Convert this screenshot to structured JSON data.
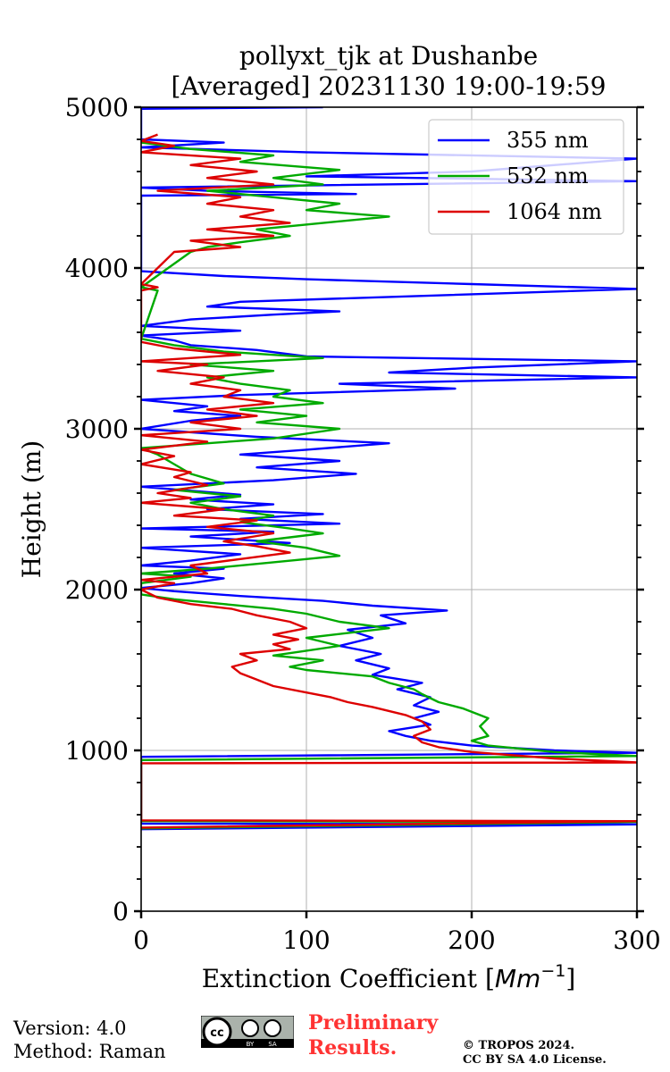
{
  "chart_data": {
    "type": "line",
    "title": "pollyxt_tjk at Dushanbe",
    "subtitle": "[Averaged] 20231130 19:00-19:59",
    "xlabel": "Extinction Coefficient [$Mm^{-1}$]",
    "xlabel_main": "Extinction Coefficient [",
    "xlabel_unit": "Mm",
    "xlabel_exp": "−1",
    "xlabel_close": "]",
    "ylabel": "Height (m)",
    "xlim": [
      0,
      300
    ],
    "ylim": [
      0,
      5000
    ],
    "x_ticks": [
      0,
      100,
      200,
      300
    ],
    "x_tick_labels": [
      "0",
      "100",
      "200",
      "300"
    ],
    "y_ticks": [
      0,
      1000,
      2000,
      3000,
      4000,
      5000
    ],
    "y_tick_labels": [
      "0",
      "1000",
      "2000",
      "3000",
      "4000",
      "5000"
    ],
    "grid": true,
    "legend_position": "top-right",
    "series": [
      {
        "name": "355 nm",
        "color": "#0000ff",
        "points": [
          [
            0,
            510
          ],
          [
            300,
            540
          ],
          [
            0,
            545
          ],
          [
            0,
            960
          ],
          [
            300,
            985
          ],
          [
            250,
            1000
          ],
          [
            200,
            1030
          ],
          [
            175,
            1060
          ],
          [
            160,
            1090
          ],
          [
            150,
            1120
          ],
          [
            175,
            1160
          ],
          [
            165,
            1200
          ],
          [
            180,
            1240
          ],
          [
            165,
            1280
          ],
          [
            175,
            1330
          ],
          [
            155,
            1380
          ],
          [
            170,
            1420
          ],
          [
            140,
            1470
          ],
          [
            150,
            1510
          ],
          [
            130,
            1560
          ],
          [
            145,
            1600
          ],
          [
            120,
            1650
          ],
          [
            140,
            1700
          ],
          [
            125,
            1750
          ],
          [
            160,
            1790
          ],
          [
            145,
            1840
          ],
          [
            185,
            1870
          ],
          [
            140,
            1900
          ],
          [
            110,
            1930
          ],
          [
            60,
            1960
          ],
          [
            20,
            1990
          ],
          [
            0,
            2010
          ],
          [
            30,
            2040
          ],
          [
            50,
            2070
          ],
          [
            20,
            2100
          ],
          [
            50,
            2130
          ],
          [
            0,
            2150
          ],
          [
            30,
            2180
          ],
          [
            60,
            2220
          ],
          [
            0,
            2260
          ],
          [
            90,
            2290
          ],
          [
            30,
            2330
          ],
          [
            80,
            2360
          ],
          [
            0,
            2380
          ],
          [
            120,
            2410
          ],
          [
            60,
            2440
          ],
          [
            110,
            2470
          ],
          [
            40,
            2500
          ],
          [
            80,
            2530
          ],
          [
            30,
            2560
          ],
          [
            60,
            2590
          ],
          [
            0,
            2640
          ],
          [
            80,
            2680
          ],
          [
            130,
            2720
          ],
          [
            70,
            2760
          ],
          [
            120,
            2800
          ],
          [
            60,
            2840
          ],
          [
            100,
            2870
          ],
          [
            150,
            2910
          ],
          [
            70,
            2950
          ],
          [
            0,
            3000
          ],
          [
            30,
            3050
          ],
          [
            60,
            3080
          ],
          [
            20,
            3110
          ],
          [
            40,
            3140
          ],
          [
            0,
            3180
          ],
          [
            60,
            3210
          ],
          [
            190,
            3250
          ],
          [
            120,
            3280
          ],
          [
            300,
            3320
          ],
          [
            150,
            3350
          ],
          [
            200,
            3380
          ],
          [
            300,
            3420
          ],
          [
            100,
            3450
          ],
          [
            70,
            3490
          ],
          [
            30,
            3520
          ],
          [
            20,
            3550
          ],
          [
            0,
            3580
          ],
          [
            60,
            3610
          ],
          [
            0,
            3640
          ],
          [
            30,
            3680
          ],
          [
            80,
            3710
          ],
          [
            120,
            3730
          ],
          [
            40,
            3760
          ],
          [
            60,
            3790
          ],
          [
            150,
            3820
          ],
          [
            300,
            3870
          ],
          [
            200,
            3900
          ],
          [
            100,
            3930
          ],
          [
            50,
            3950
          ],
          [
            0,
            3980
          ],
          [
            0,
            4450
          ],
          [
            130,
            4460
          ],
          [
            40,
            4480
          ],
          [
            0,
            4500
          ],
          [
            300,
            4540
          ],
          [
            100,
            4570
          ],
          [
            200,
            4600
          ],
          [
            300,
            4680
          ],
          [
            100,
            4720
          ],
          [
            0,
            4750
          ],
          [
            50,
            4780
          ],
          [
            0,
            4800
          ],
          [
            0,
            4990
          ],
          [
            110,
            5000
          ]
        ]
      },
      {
        "name": "532 nm",
        "color": "#00aa00",
        "points": [
          [
            0,
            515
          ],
          [
            300,
            555
          ],
          [
            0,
            560
          ],
          [
            0,
            940
          ],
          [
            300,
            965
          ],
          [
            250,
            990
          ],
          [
            210,
            1030
          ],
          [
            200,
            1060
          ],
          [
            210,
            1090
          ],
          [
            205,
            1150
          ],
          [
            210,
            1200
          ],
          [
            195,
            1260
          ],
          [
            180,
            1300
          ],
          [
            170,
            1350
          ],
          [
            165,
            1380
          ],
          [
            150,
            1420
          ],
          [
            140,
            1460
          ],
          [
            100,
            1500
          ],
          [
            90,
            1520
          ],
          [
            110,
            1560
          ],
          [
            80,
            1590
          ],
          [
            100,
            1620
          ],
          [
            120,
            1650
          ],
          [
            100,
            1700
          ],
          [
            150,
            1760
          ],
          [
            120,
            1800
          ],
          [
            100,
            1850
          ],
          [
            80,
            1880
          ],
          [
            50,
            1910
          ],
          [
            20,
            1940
          ],
          [
            0,
            1970
          ],
          [
            0,
            2040
          ],
          [
            30,
            2080
          ],
          [
            0,
            2100
          ],
          [
            40,
            2130
          ],
          [
            80,
            2170
          ],
          [
            120,
            2210
          ],
          [
            100,
            2260
          ],
          [
            70,
            2300
          ],
          [
            110,
            2350
          ],
          [
            90,
            2380
          ],
          [
            60,
            2420
          ],
          [
            80,
            2460
          ],
          [
            50,
            2500
          ],
          [
            30,
            2540
          ],
          [
            60,
            2580
          ],
          [
            20,
            2620
          ],
          [
            50,
            2660
          ],
          [
            30,
            2720
          ],
          [
            20,
            2780
          ],
          [
            10,
            2840
          ],
          [
            0,
            2880
          ],
          [
            80,
            2940
          ],
          [
            120,
            3000
          ],
          [
            70,
            3040
          ],
          [
            100,
            3080
          ],
          [
            60,
            3120
          ],
          [
            110,
            3160
          ],
          [
            80,
            3200
          ],
          [
            90,
            3240
          ],
          [
            60,
            3280
          ],
          [
            40,
            3320
          ],
          [
            80,
            3360
          ],
          [
            30,
            3400
          ],
          [
            110,
            3440
          ],
          [
            50,
            3480
          ],
          [
            20,
            3520
          ],
          [
            0,
            3560
          ],
          [
            10,
            3860
          ],
          [
            0,
            3880
          ],
          [
            30,
            4100
          ],
          [
            40,
            4130
          ],
          [
            60,
            4160
          ],
          [
            90,
            4200
          ],
          [
            70,
            4240
          ],
          [
            110,
            4280
          ],
          [
            150,
            4320
          ],
          [
            100,
            4360
          ],
          [
            120,
            4400
          ],
          [
            80,
            4440
          ],
          [
            40,
            4480
          ],
          [
            110,
            4520
          ],
          [
            80,
            4560
          ],
          [
            120,
            4610
          ],
          [
            60,
            4660
          ],
          [
            80,
            4700
          ],
          [
            30,
            4740
          ],
          [
            0,
            4780
          ]
        ]
      },
      {
        "name": "1064 nm",
        "color": "#dd0000",
        "points": [
          [
            0,
            520
          ],
          [
            300,
            560
          ],
          [
            0,
            565
          ],
          [
            0,
            920
          ],
          [
            300,
            925
          ],
          [
            250,
            950
          ],
          [
            200,
            990
          ],
          [
            180,
            1020
          ],
          [
            170,
            1050
          ],
          [
            165,
            1090
          ],
          [
            175,
            1130
          ],
          [
            170,
            1180
          ],
          [
            160,
            1220
          ],
          [
            140,
            1270
          ],
          [
            125,
            1300
          ],
          [
            115,
            1330
          ],
          [
            100,
            1360
          ],
          [
            80,
            1400
          ],
          [
            70,
            1440
          ],
          [
            60,
            1480
          ],
          [
            55,
            1520
          ],
          [
            70,
            1560
          ],
          [
            60,
            1600
          ],
          [
            90,
            1630
          ],
          [
            80,
            1660
          ],
          [
            95,
            1690
          ],
          [
            80,
            1720
          ],
          [
            100,
            1760
          ],
          [
            90,
            1800
          ],
          [
            70,
            1840
          ],
          [
            55,
            1880
          ],
          [
            30,
            1910
          ],
          [
            10,
            1950
          ],
          [
            0,
            2000
          ],
          [
            20,
            2040
          ],
          [
            0,
            2060
          ],
          [
            40,
            2100
          ],
          [
            30,
            2150
          ],
          [
            60,
            2190
          ],
          [
            90,
            2230
          ],
          [
            70,
            2270
          ],
          [
            50,
            2300
          ],
          [
            80,
            2350
          ],
          [
            40,
            2390
          ],
          [
            70,
            2430
          ],
          [
            20,
            2460
          ],
          [
            50,
            2500
          ],
          [
            0,
            2540
          ],
          [
            30,
            2570
          ],
          [
            10,
            2600
          ],
          [
            40,
            2650
          ],
          [
            20,
            2700
          ],
          [
            30,
            2730
          ],
          [
            0,
            2780
          ],
          [
            20,
            2830
          ],
          [
            0,
            2870
          ],
          [
            40,
            2920
          ],
          [
            0,
            2960
          ],
          [
            60,
            3000
          ],
          [
            30,
            3040
          ],
          [
            70,
            3080
          ],
          [
            40,
            3120
          ],
          [
            80,
            3160
          ],
          [
            50,
            3200
          ],
          [
            60,
            3240
          ],
          [
            30,
            3280
          ],
          [
            50,
            3320
          ],
          [
            10,
            3360
          ],
          [
            40,
            3400
          ],
          [
            0,
            3420
          ],
          [
            60,
            3460
          ],
          [
            20,
            3500
          ],
          [
            0,
            3540
          ],
          [
            0,
            3860
          ],
          [
            10,
            3880
          ],
          [
            0,
            3900
          ],
          [
            20,
            4100
          ],
          [
            60,
            4130
          ],
          [
            30,
            4170
          ],
          [
            80,
            4200
          ],
          [
            40,
            4240
          ],
          [
            90,
            4280
          ],
          [
            60,
            4320
          ],
          [
            80,
            4360
          ],
          [
            40,
            4400
          ],
          [
            60,
            4440
          ],
          [
            10,
            4480
          ],
          [
            80,
            4520
          ],
          [
            40,
            4560
          ],
          [
            70,
            4600
          ],
          [
            30,
            4640
          ],
          [
            60,
            4680
          ],
          [
            0,
            4720
          ],
          [
            20,
            4760
          ],
          [
            0,
            4790
          ],
          [
            10,
            4830
          ]
        ]
      }
    ]
  },
  "footer": {
    "version_line": "Version: 4.0",
    "method_line": "Method: Raman",
    "preliminary_line1": "Preliminary",
    "preliminary_line2": "Results.",
    "copyright_line1": "© TROPOS 2024.",
    "copyright_line2": "CC BY SA 4.0 License.",
    "license_badge": {
      "cc": "cc",
      "by": "BY",
      "sa": "SA"
    }
  }
}
